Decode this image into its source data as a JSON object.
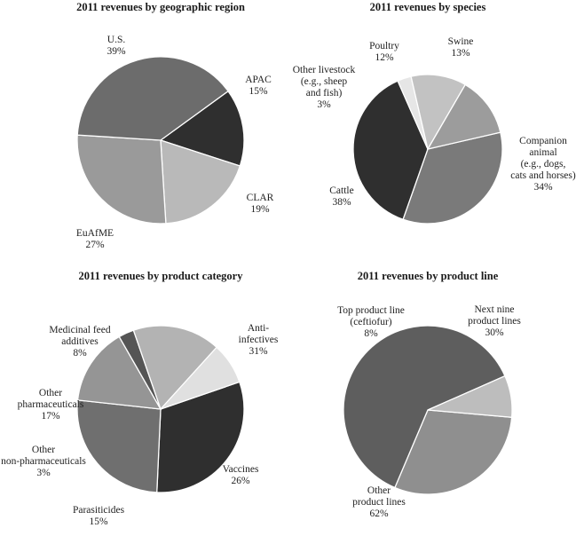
{
  "chart_data": [
    {
      "type": "pie",
      "title": "2011 revenues by geographic region",
      "labels": [
        "APAC",
        "CLAR",
        "EuAfME",
        "U.S."
      ],
      "values": [
        15,
        19,
        27,
        39
      ],
      "value_labels": [
        "15%",
        "19%",
        "27%",
        "39%"
      ],
      "colors": [
        "#2f2f2f",
        "#b9b9b9",
        "#9a9a9a",
        "#6c6c6c"
      ]
    },
    {
      "type": "pie",
      "title": "2011 revenues by species",
      "labels": [
        "Companion animal (e.g., dogs, cats and horses)",
        "Cattle",
        "Other livestock (e.g., sheep and fish)",
        "Poultry",
        "Swine"
      ],
      "label_lines": [
        [
          "Companion",
          "animal",
          "(e.g., dogs,",
          "cats and horses)"
        ],
        [
          "Cattle"
        ],
        [
          "Other livestock",
          "(e.g., sheep",
          "and fish)"
        ],
        [
          "Poultry"
        ],
        [
          "Swine"
        ]
      ],
      "values": [
        34,
        38,
        3,
        12,
        13
      ],
      "value_labels": [
        "34%",
        "38%",
        "3%",
        "12%",
        "13%"
      ],
      "colors": [
        "#7a7a7a",
        "#2f2f2f",
        "#e6e6e6",
        "#c2c2c2",
        "#9c9c9c"
      ]
    },
    {
      "type": "pie",
      "title": "2011 revenues by product category",
      "labels": [
        "Anti-infectives",
        "Vaccines",
        "Parasiticides",
        "Other non-pharmaceuticals",
        "Other pharmaceuticals",
        "Medicinal feed additives"
      ],
      "label_lines": [
        [
          "Anti-",
          "infectives"
        ],
        [
          "Vaccines"
        ],
        [
          "Parasiticides"
        ],
        [
          "Other",
          "non-pharmaceuticals"
        ],
        [
          "Other",
          "pharmaceuticals"
        ],
        [
          "Medicinal feed",
          "additives"
        ]
      ],
      "values": [
        31,
        26,
        15,
        3,
        17,
        8
      ],
      "value_labels": [
        "31%",
        "26%",
        "15%",
        "3%",
        "17%",
        "8%"
      ],
      "colors": [
        "#2f2f2f",
        "#6f6f6f",
        "#959595",
        "#555555",
        "#b3b3b3",
        "#e0e0e0"
      ]
    },
    {
      "type": "pie",
      "title": "2011 revenues by product line",
      "labels": [
        "Next nine product lines",
        "Other product lines",
        "Top product line (ceftiofur)"
      ],
      "label_lines": [
        [
          "Next nine",
          "product lines"
        ],
        [
          "Other",
          "product lines"
        ],
        [
          "Top product line",
          "(ceftiofur)"
        ]
      ],
      "values": [
        30,
        62,
        8
      ],
      "value_labels": [
        "30%",
        "62%",
        "8%"
      ],
      "colors": [
        "#8f8f8f",
        "#5e5e5e",
        "#bdbdbd"
      ]
    }
  ]
}
